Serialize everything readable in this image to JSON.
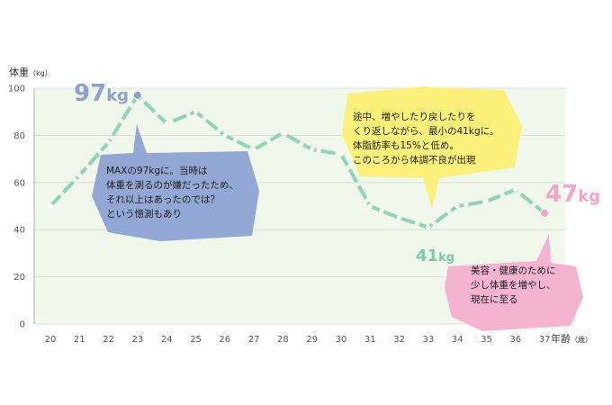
{
  "chart_data": {
    "type": "line",
    "ylabel": "体重",
    "yunit": "（kg）",
    "xlabel": "年齢",
    "xunit": "（歳）",
    "ylim": [
      0,
      100
    ],
    "yticks": [
      0,
      20,
      40,
      60,
      80,
      100
    ],
    "x": [
      20,
      21,
      22,
      23,
      24,
      25,
      26,
      27,
      28,
      29,
      30,
      31,
      32,
      33,
      34,
      35,
      36,
      37
    ],
    "series": [
      {
        "values": [
          50,
          63,
          77,
          97,
          85,
          90,
          80,
          74,
          81,
          74,
          72,
          50,
          45,
          41,
          50,
          52,
          57,
          47
        ]
      }
    ],
    "grid": true,
    "colors": {
      "line": "#8fd4b4",
      "plot_bg": "#f0f8ec",
      "grid": "#d3d9d3",
      "max_color": "#8f9fce",
      "min_color": "#7bcaa9",
      "current_color": "#f2a6c4"
    },
    "point_labels": {
      "max": {
        "value": "97",
        "unit": "kg"
      },
      "min": {
        "value": "41",
        "unit": "kg"
      },
      "current": {
        "value": "47",
        "unit": "kg"
      }
    },
    "annotations": [
      {
        "id": "max",
        "lines": [
          "MAXの97kgに。当時は",
          "体重を測るのが嫌だったため、",
          "それ以上はあったのでは？",
          "という憶測もあり"
        ],
        "color": "#92a7d4"
      },
      {
        "id": "min",
        "lines": [
          "途中、増やしたり戻したりを",
          "くり返しながら、最小の41kgに。",
          "体脂肪率も15%と低め。",
          "このころから体調不良が出現"
        ],
        "color": "#fbf17a"
      },
      {
        "id": "current",
        "lines": [
          "美容・健康のために",
          "少し体重を増やし、",
          "現在に至る"
        ],
        "color": "#f4b3cf"
      }
    ]
  }
}
